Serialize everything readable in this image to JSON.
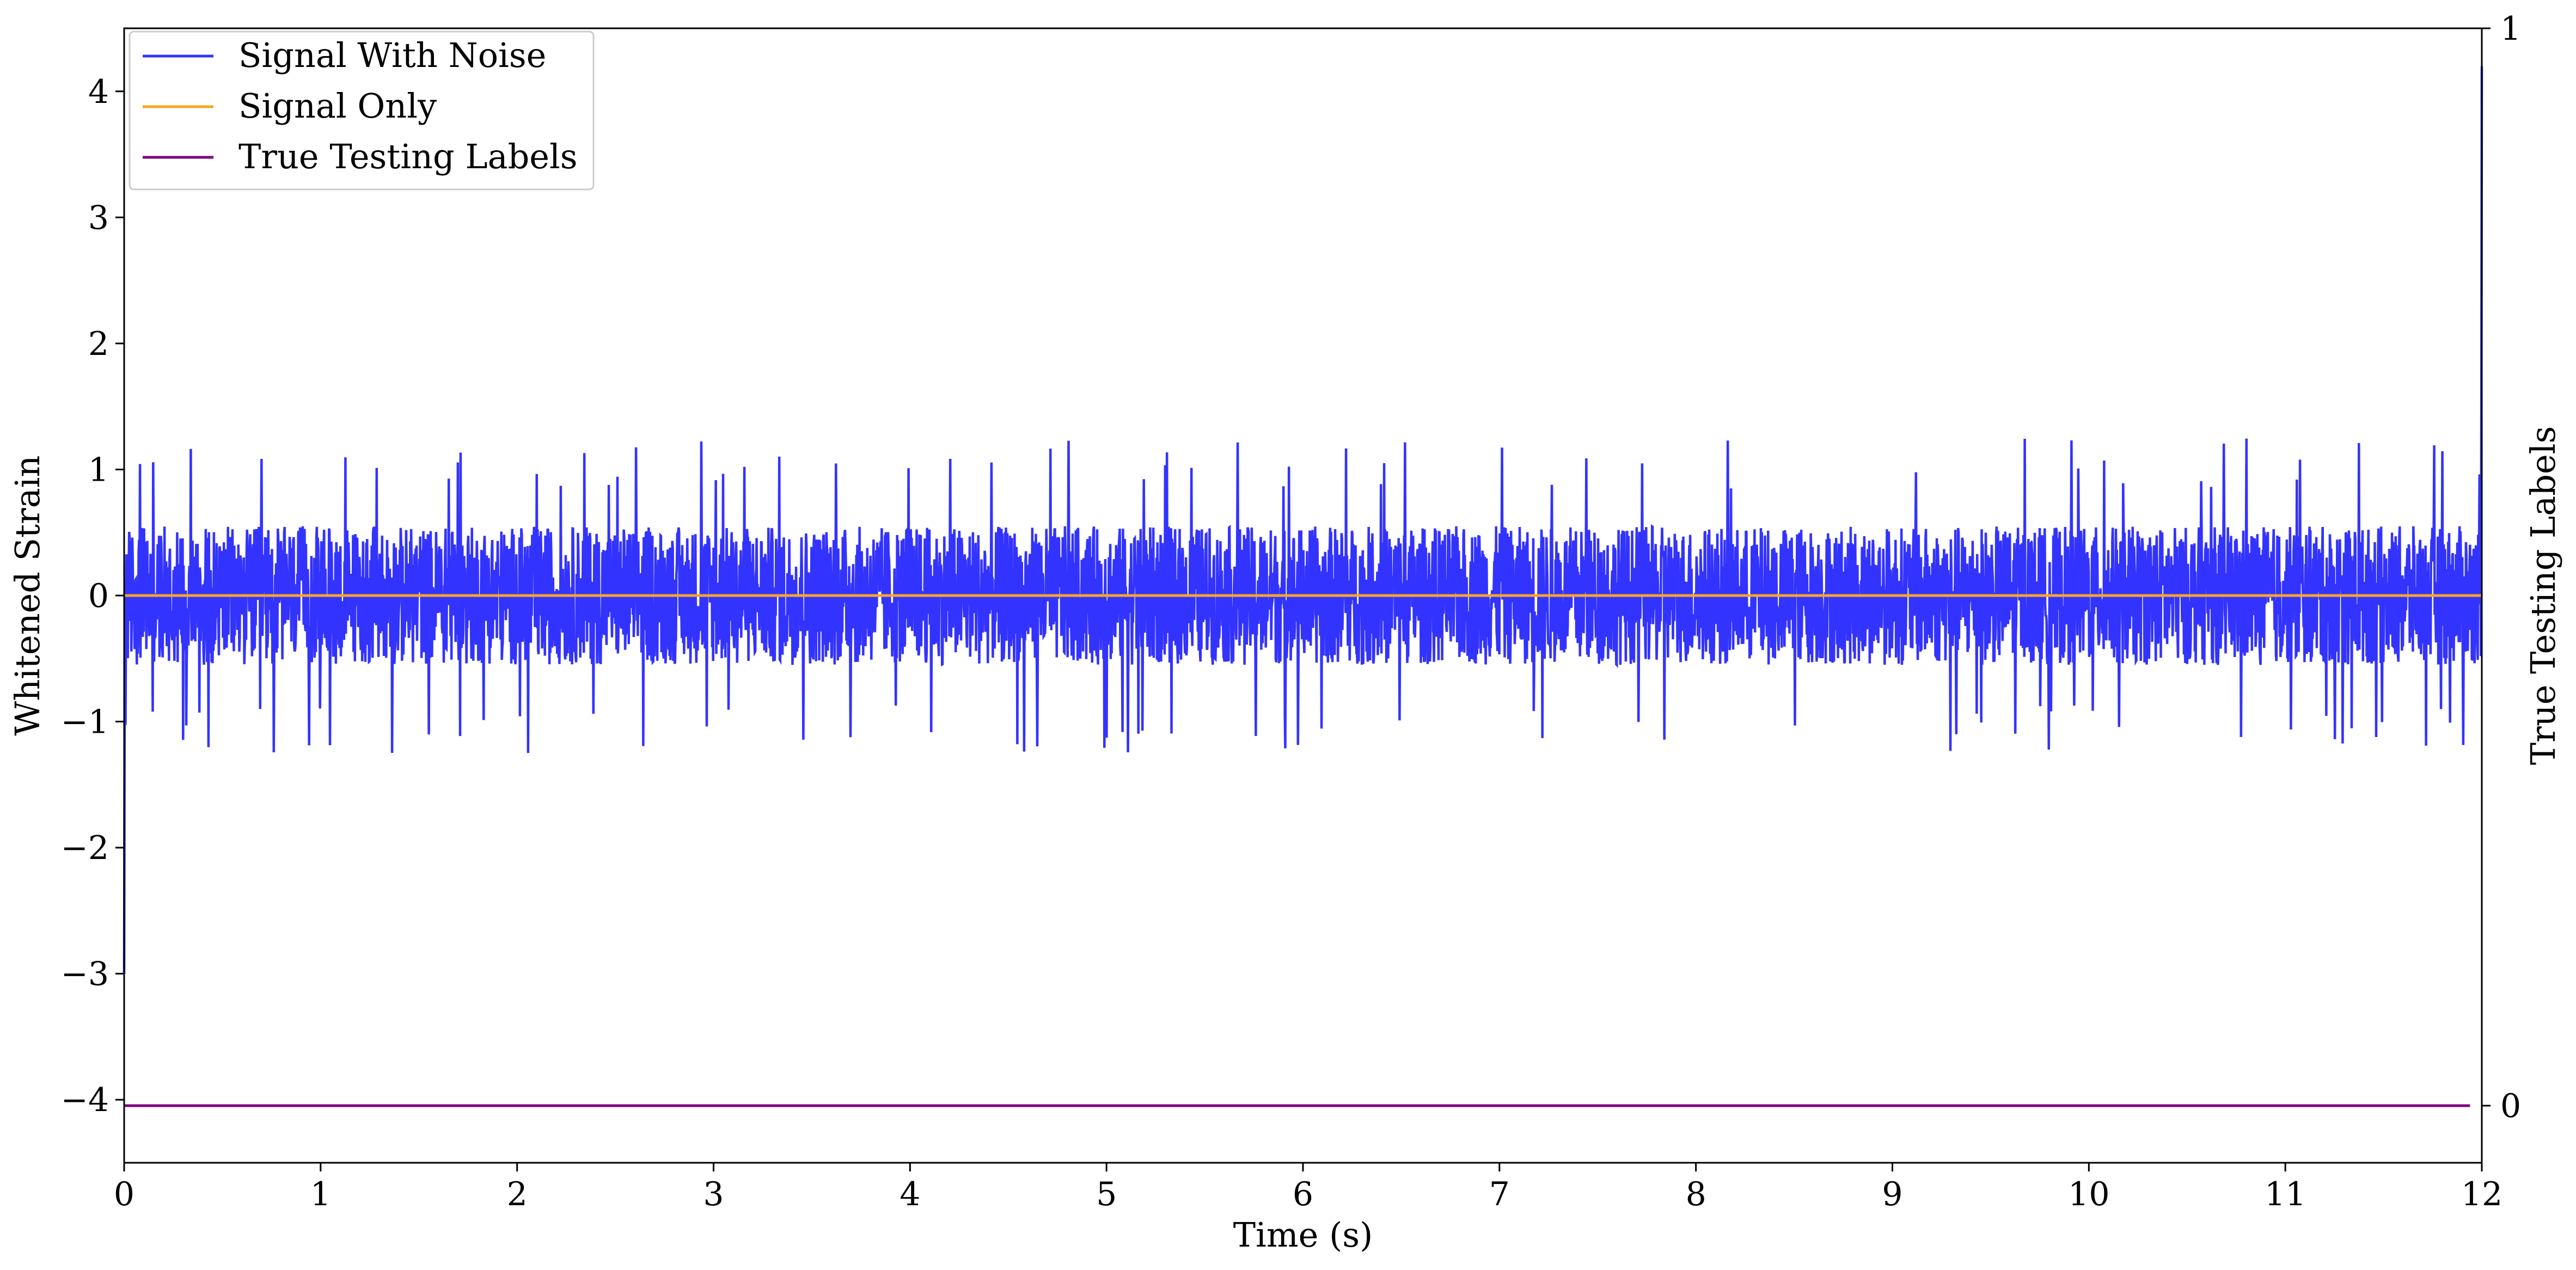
{
  "chart_data": {
    "type": "line",
    "xlabel": "Time (s)",
    "ylabel": "Whitened Strain",
    "y2label": "True Testing Labels",
    "xlim": [
      0,
      12
    ],
    "ylim": [
      -4.5,
      4.5
    ],
    "y2lim": [
      -0.053,
      1.0
    ],
    "xticks": [
      0,
      1,
      2,
      3,
      4,
      5,
      6,
      7,
      8,
      9,
      10,
      11,
      12
    ],
    "yticks": [
      -4,
      -3,
      -2,
      -1,
      0,
      1,
      2,
      3,
      4
    ],
    "y2ticks": [
      0,
      1
    ],
    "grid": false,
    "legend": "top-left",
    "series": [
      {
        "name": "Signal With Noise",
        "color": "#3333ff",
        "axis": "left",
        "description_values": {
          "x_start": 0,
          "x_end": 12,
          "baseline": 0,
          "typical_amplitude": 0.55,
          "max_peak": 1.25,
          "min_trough": -1.25,
          "start_transient": -3.0,
          "end_spike": 4.2
        }
      },
      {
        "name": "Signal Only",
        "color": "#f5a623",
        "axis": "left",
        "x": [
          0,
          12
        ],
        "values": [
          0,
          0
        ]
      },
      {
        "name": "True Testing Labels",
        "color": "#800080",
        "axis": "right",
        "x": [
          0,
          11.94
        ],
        "values": [
          0,
          0
        ]
      }
    ]
  }
}
